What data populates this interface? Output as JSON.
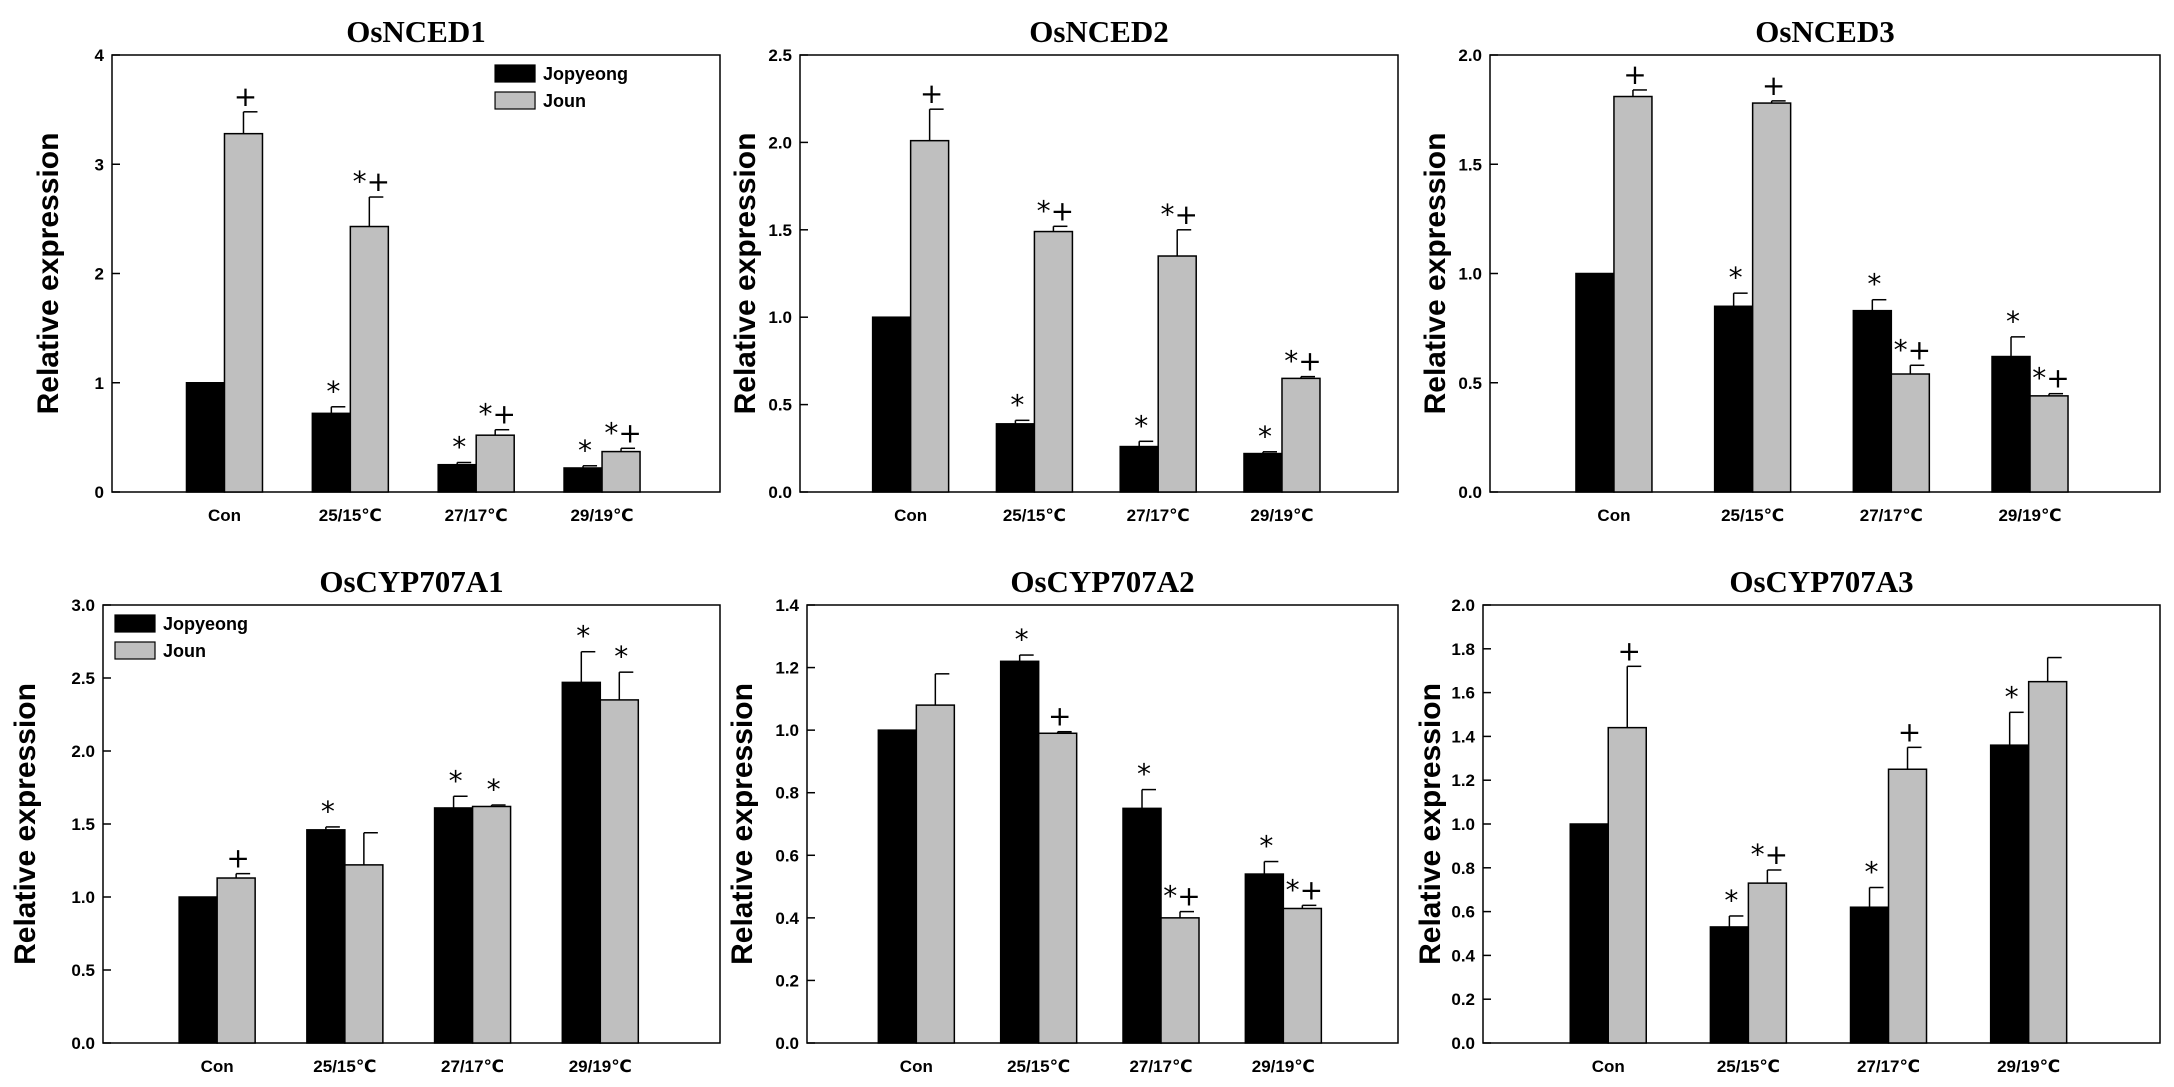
{
  "chart_data": [
    {
      "type": "bar",
      "title": "OsNCED1",
      "ylabel": "Relative expression",
      "categories": [
        "Con",
        "25/15℃",
        "27/17℃",
        "29/19℃"
      ],
      "ylim": [
        0,
        4
      ],
      "yticks": [
        "0",
        "1",
        "2",
        "3",
        "4"
      ],
      "series": [
        {
          "name": "Jopyeong",
          "color": "#000000",
          "values": [
            1.0,
            0.72,
            0.25,
            0.22
          ],
          "errors": [
            0,
            0.06,
            0.02,
            0.02
          ],
          "marks": [
            "",
            "*",
            "*",
            "*"
          ]
        },
        {
          "name": "Joun",
          "color": "#bfbfbf",
          "values": [
            3.28,
            2.43,
            0.52,
            0.37
          ],
          "errors": [
            0.2,
            0.27,
            0.05,
            0.03
          ],
          "marks": [
            "+",
            "*+",
            "*+",
            "*+"
          ]
        }
      ],
      "legend": "top-right"
    },
    {
      "type": "bar",
      "title": "OsNCED2",
      "ylabel": "Relative expression",
      "categories": [
        "Con",
        "25/15℃",
        "27/17℃",
        "29/19℃"
      ],
      "ylim": [
        0,
        2.5
      ],
      "yticks": [
        "0.0",
        "0.5",
        "1.0",
        "1.5",
        "2.0",
        "2.5"
      ],
      "series": [
        {
          "name": "Jopyeong",
          "color": "#000000",
          "values": [
            1.0,
            0.39,
            0.26,
            0.22
          ],
          "errors": [
            0,
            0.02,
            0.03,
            0.01
          ],
          "marks": [
            "",
            "*",
            "*",
            "*"
          ]
        },
        {
          "name": "Joun",
          "color": "#bfbfbf",
          "values": [
            2.01,
            1.49,
            1.35,
            0.65
          ],
          "errors": [
            0.18,
            0.03,
            0.15,
            0.01
          ],
          "marks": [
            "+",
            "*+",
            "*+",
            "*+"
          ]
        }
      ]
    },
    {
      "type": "bar",
      "title": "OsNCED3",
      "ylabel": "Relative expression",
      "categories": [
        "Con",
        "25/15℃",
        "27/17℃",
        "29/19℃"
      ],
      "ylim": [
        0,
        2.0
      ],
      "yticks": [
        "0.0",
        "0.5",
        "1.0",
        "1.5",
        "2.0"
      ],
      "series": [
        {
          "name": "Jopyeong",
          "color": "#000000",
          "values": [
            1.0,
            0.85,
            0.83,
            0.62
          ],
          "errors": [
            0,
            0.06,
            0.05,
            0.09
          ],
          "marks": [
            "",
            "*",
            "*",
            "*"
          ]
        },
        {
          "name": "Joun",
          "color": "#bfbfbf",
          "values": [
            1.81,
            1.78,
            0.54,
            0.44
          ],
          "errors": [
            0.03,
            0.01,
            0.04,
            0.01
          ],
          "marks": [
            "+",
            "+",
            "*+",
            "*+"
          ]
        }
      ]
    },
    {
      "type": "bar",
      "title": "OsCYP707A1",
      "ylabel": "Relative expression",
      "categories": [
        "Con",
        "25/15℃",
        "27/17℃",
        "29/19℃"
      ],
      "ylim": [
        0,
        3.0
      ],
      "yticks": [
        "0.0",
        "0.5",
        "1.0",
        "1.5",
        "2.0",
        "2.5",
        "3.0"
      ],
      "series": [
        {
          "name": "Jopyeong",
          "color": "#000000",
          "values": [
            1.0,
            1.46,
            1.61,
            2.47
          ],
          "errors": [
            0,
            0.02,
            0.08,
            0.21
          ],
          "marks": [
            "",
            "*",
            "*",
            "*"
          ]
        },
        {
          "name": "Joun",
          "color": "#bfbfbf",
          "values": [
            1.13,
            1.22,
            1.62,
            2.35
          ],
          "errors": [
            0.03,
            0.22,
            0.01,
            0.19
          ],
          "marks": [
            "+",
            "",
            "*",
            "*"
          ]
        }
      ],
      "legend": "top-left"
    },
    {
      "type": "bar",
      "title": "OsCYP707A2",
      "ylabel": "Relative expression",
      "categories": [
        "Con",
        "25/15℃",
        "27/17℃",
        "29/19℃"
      ],
      "ylim": [
        0,
        1.4
      ],
      "yticks": [
        "0.0",
        "0.2",
        "0.4",
        "0.6",
        "0.8",
        "1.0",
        "1.2",
        "1.4"
      ],
      "series": [
        {
          "name": "Jopyeong",
          "color": "#000000",
          "values": [
            1.0,
            1.22,
            0.75,
            0.54
          ],
          "errors": [
            0,
            0.02,
            0.06,
            0.04
          ],
          "marks": [
            "",
            "*",
            "*",
            "*"
          ]
        },
        {
          "name": "Joun",
          "color": "#bfbfbf",
          "values": [
            1.08,
            0.99,
            0.4,
            0.43
          ],
          "errors": [
            0.1,
            0.005,
            0.02,
            0.01
          ],
          "marks": [
            "",
            "+",
            "*+",
            "*+"
          ]
        }
      ]
    },
    {
      "type": "bar",
      "title": "OsCYP707A3",
      "ylabel": "Relative expression",
      "categories": [
        "Con",
        "25/15℃",
        "27/17℃",
        "29/19℃"
      ],
      "ylim": [
        0,
        2.0
      ],
      "yticks": [
        "0.0",
        "0.2",
        "0.4",
        "0.6",
        "0.8",
        "1.0",
        "1.2",
        "1.4",
        "1.6",
        "1.8",
        "2.0"
      ],
      "series": [
        {
          "name": "Jopyeong",
          "color": "#000000",
          "values": [
            1.0,
            0.53,
            0.62,
            1.36
          ],
          "errors": [
            0,
            0.05,
            0.09,
            0.15
          ],
          "marks": [
            "",
            "*",
            "*",
            "*"
          ]
        },
        {
          "name": "Joun",
          "color": "#bfbfbf",
          "values": [
            1.44,
            0.73,
            1.25,
            1.65
          ],
          "errors": [
            0.28,
            0.06,
            0.1,
            0.11
          ],
          "marks": [
            "+",
            "*+",
            "+",
            ""
          ]
        }
      ]
    }
  ]
}
